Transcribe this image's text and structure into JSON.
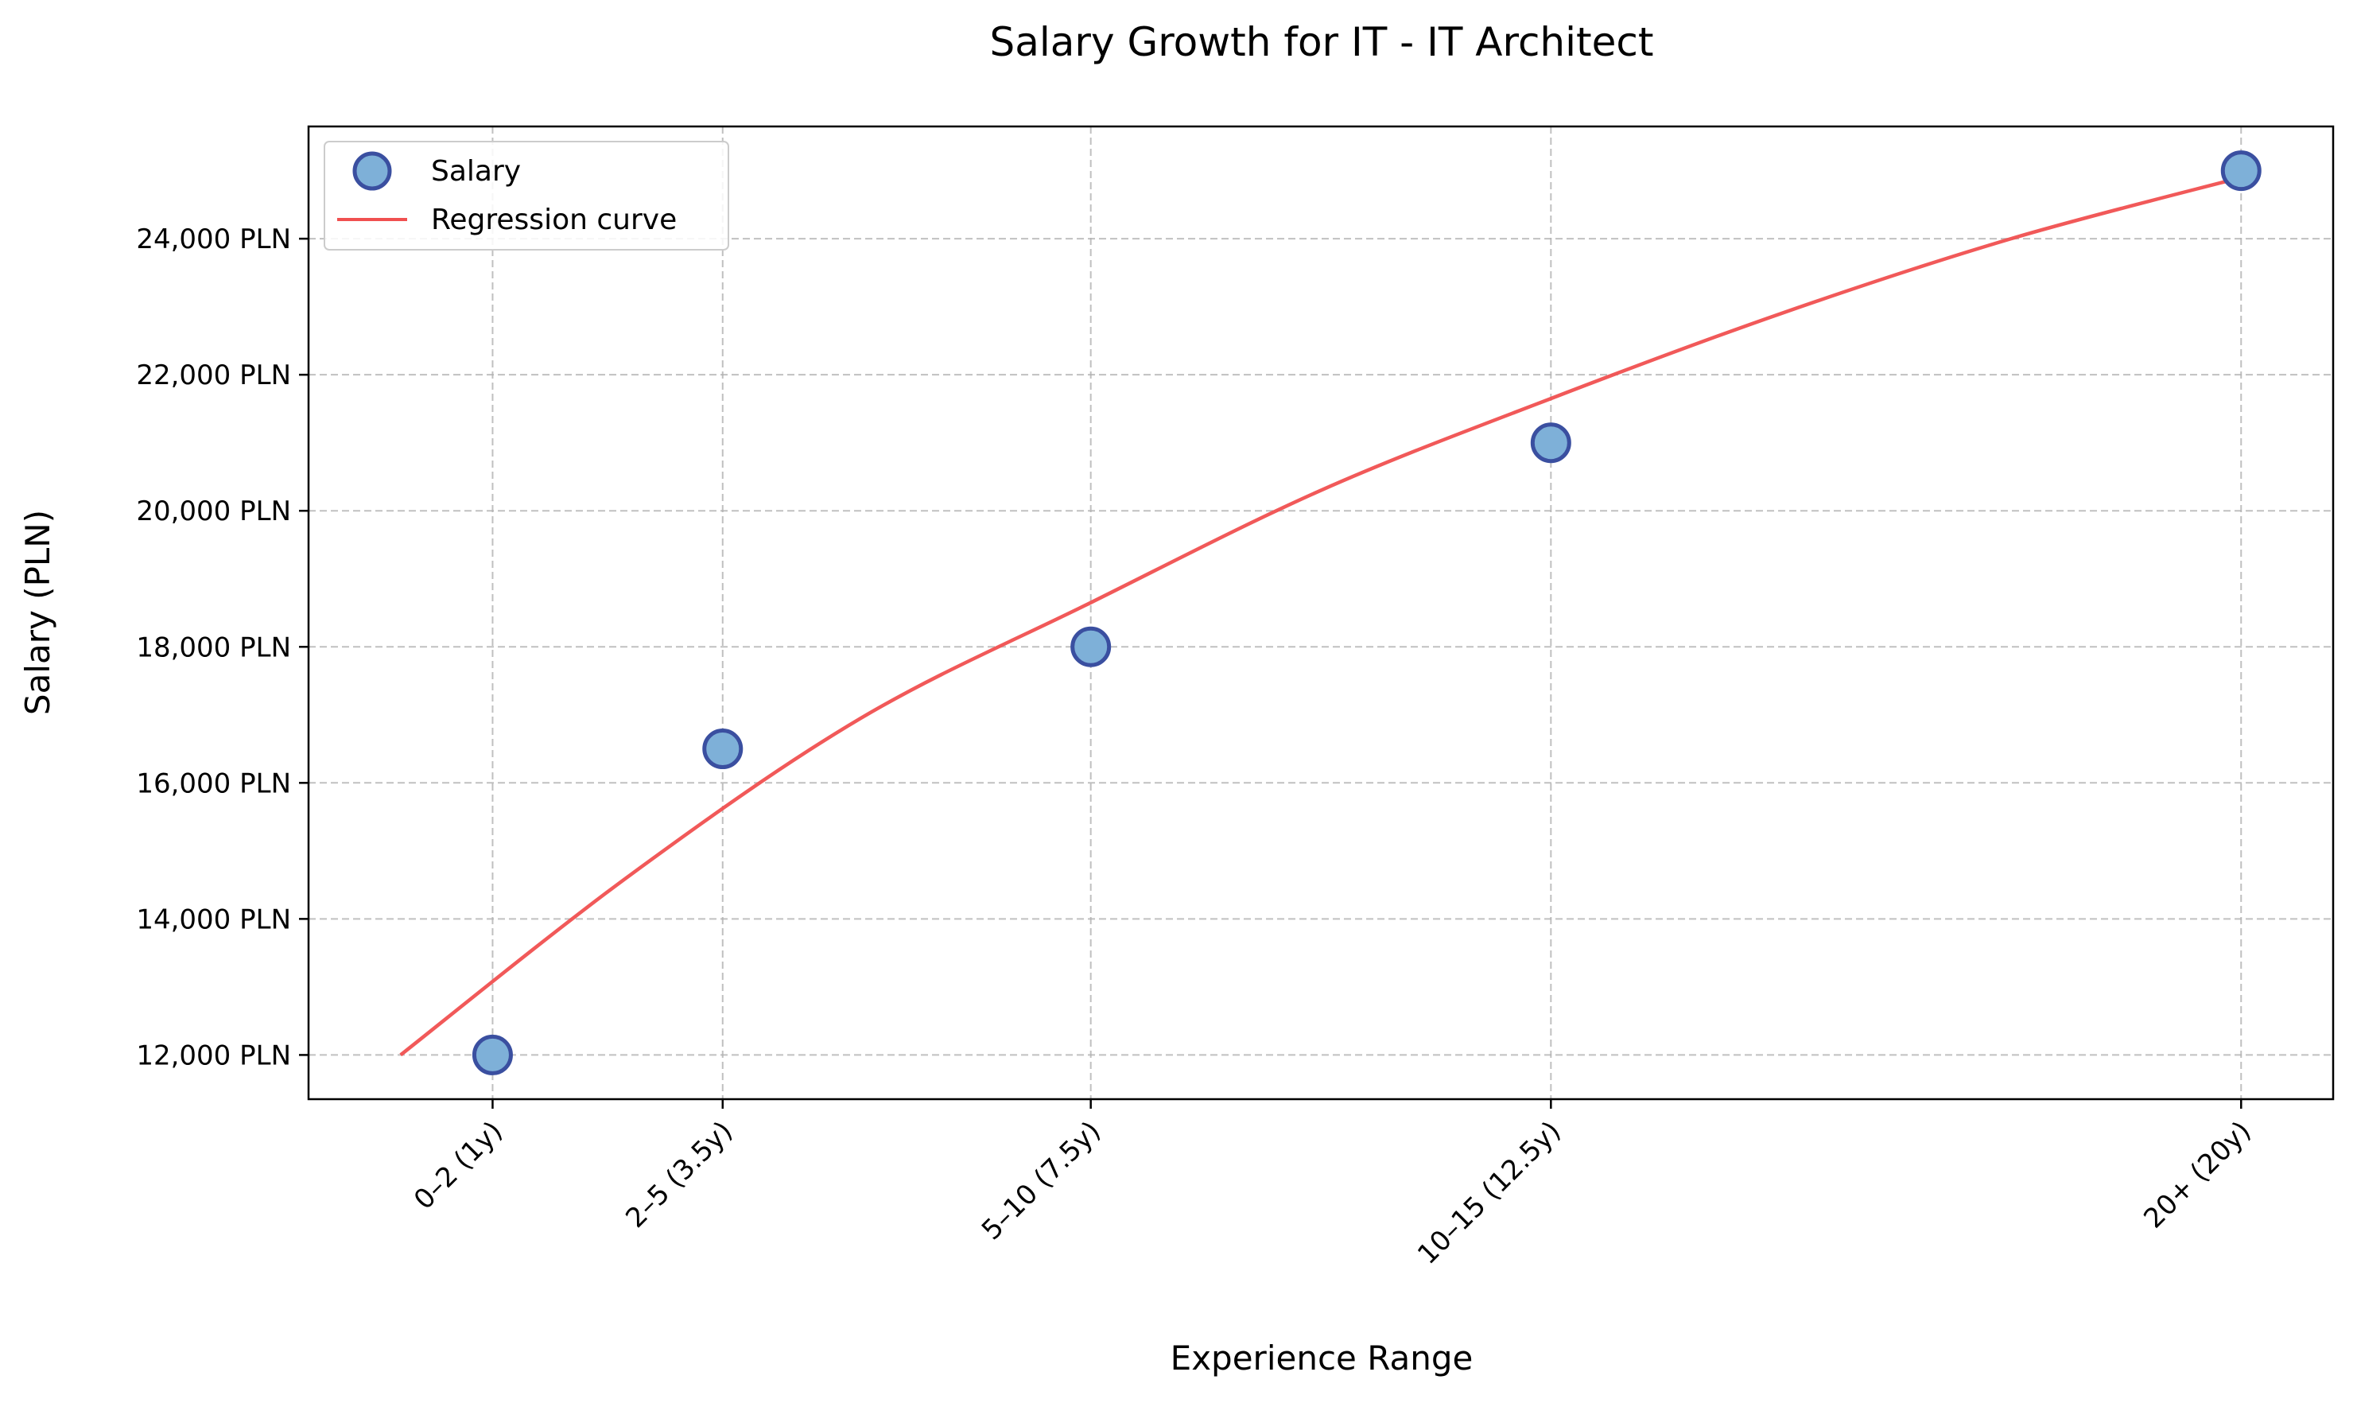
{
  "chart_data": {
    "type": "scatter",
    "title": "Salary Growth for IT - IT Architect",
    "xlabel": "Experience Range",
    "ylabel": "Salary (PLN)",
    "x_tick_values": [
      1,
      3.5,
      7.5,
      12.5,
      20
    ],
    "x_tick_labels": [
      "0–2 (1y)",
      "2–5 (3.5y)",
      "5–10 (7.5y)",
      "10–15 (12.5y)",
      "20+ (20y)"
    ],
    "xlim": [
      -1,
      21
    ],
    "ylim": [
      11350,
      25650
    ],
    "y_ticks": [
      12000,
      14000,
      16000,
      18000,
      20000,
      22000,
      24000
    ],
    "y_tick_labels": [
      "12,000 PLN",
      "14,000 PLN",
      "16,000 PLN",
      "18,000 PLN",
      "20,000 PLN",
      "22,000 PLN",
      "24,000 PLN"
    ],
    "grid": true,
    "legend_position": "top-left",
    "series": [
      {
        "name": "Salary",
        "kind": "scatter",
        "x": [
          1,
          3.5,
          7.5,
          12.5,
          20
        ],
        "y": [
          12000,
          16500,
          18000,
          21000,
          25000
        ],
        "fill_color": "#7eb0d8",
        "edge_color": "#3a4fa0"
      },
      {
        "name": "Regression curve",
        "kind": "line",
        "x": [
          0,
          2.5,
          5,
          7.5,
          10,
          12.5,
          15,
          17.5,
          20
        ],
        "y": [
          12000,
          14650,
          16950,
          18650,
          20300,
          21650,
          22900,
          24000,
          24900
        ],
        "color": "#f05050"
      }
    ]
  }
}
